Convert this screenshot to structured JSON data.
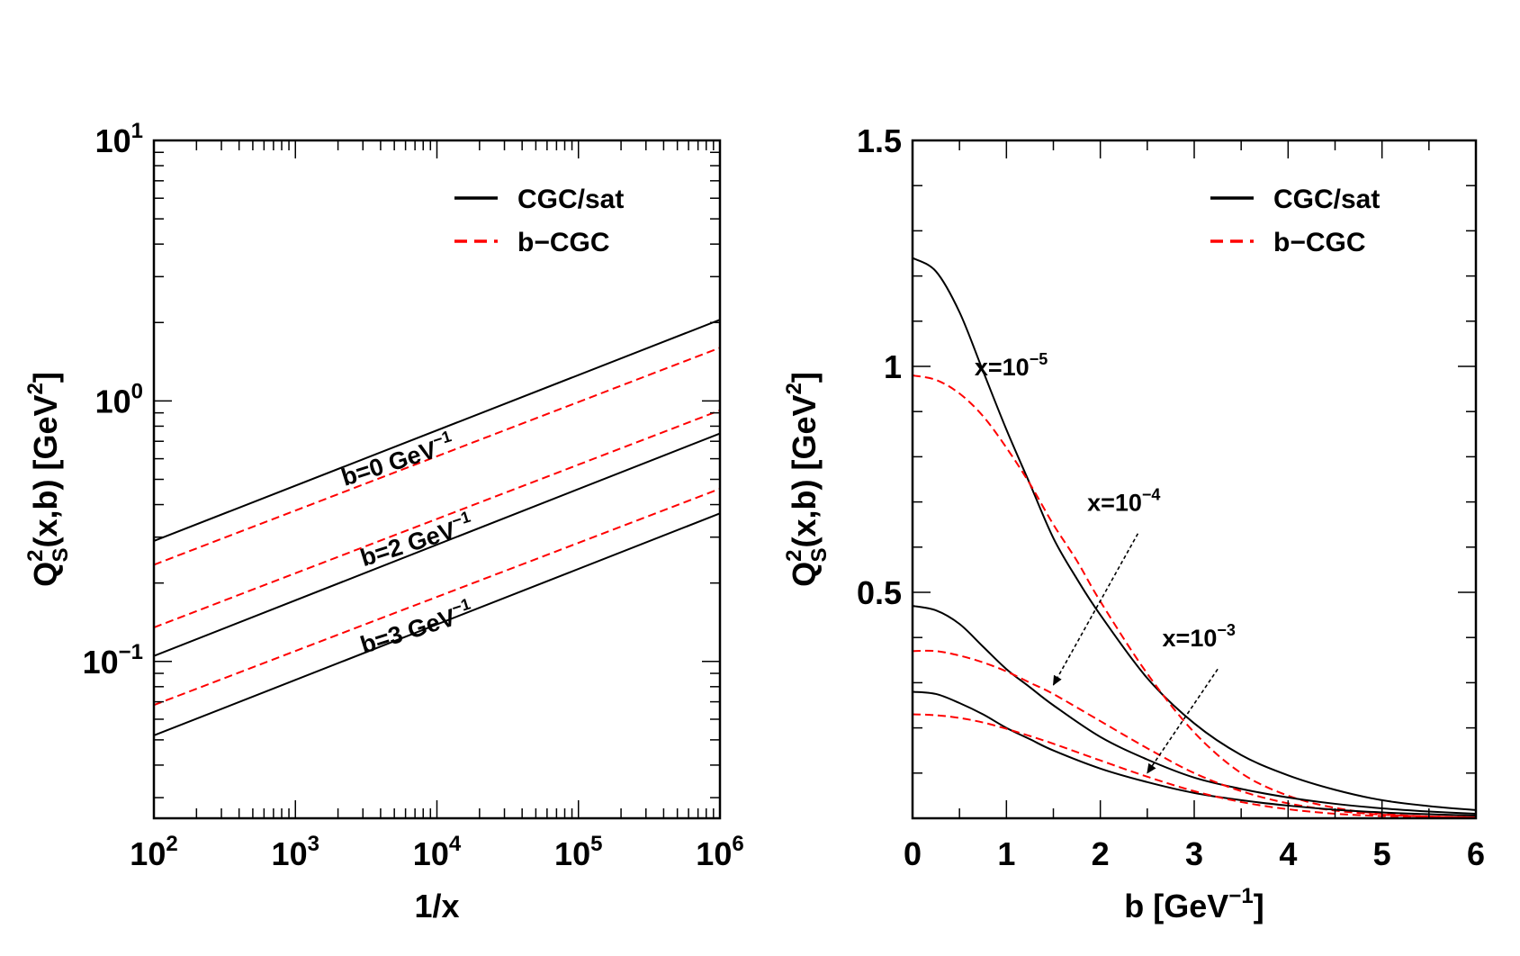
{
  "chart_data": [
    {
      "type": "line",
      "xscale": "log",
      "yscale": "log",
      "xlabel": "1/x",
      "ylabel": "Q_S^2(x,b) [GeV^2]",
      "ylabel_parts": {
        "q": "Q",
        "sup": "2",
        "sub": "S",
        "rest": "(x,b) [GeV",
        "unit_sup": "2",
        "close": "]"
      },
      "xlim": [
        100,
        1000000
      ],
      "ylim": [
        0.025,
        10
      ],
      "xticks": [
        {
          "base": "10",
          "exp": "2",
          "value": 100
        },
        {
          "base": "10",
          "exp": "3",
          "value": 1000
        },
        {
          "base": "10",
          "exp": "4",
          "value": 10000
        },
        {
          "base": "10",
          "exp": "5",
          "value": 100000
        },
        {
          "base": "10",
          "exp": "6",
          "value": 1000000
        }
      ],
      "yticks": [
        {
          "base": "10",
          "exp": "−1",
          "value": 0.1
        },
        {
          "base": "10",
          "exp": "0",
          "value": 1
        },
        {
          "base": "10",
          "exp": "1",
          "value": 10
        }
      ],
      "legend": {
        "position": "top-right",
        "entries": [
          {
            "label": "CGC/sat",
            "style": "solid",
            "color": "#000000"
          },
          {
            "label": "b−CGC",
            "style": "dashed",
            "color": "#ff0000"
          }
        ]
      },
      "series": [
        {
          "name": "CGC/sat, b=0",
          "style": "solid",
          "color": "#000000",
          "x": [
            100,
            1000000
          ],
          "y": [
            0.29,
            2.05
          ]
        },
        {
          "name": "b−CGC, b=0",
          "style": "dashed",
          "color": "#ff0000",
          "x": [
            100,
            1000000
          ],
          "y": [
            0.235,
            1.6
          ]
        },
        {
          "name": "b−CGC, b=2",
          "style": "dashed",
          "color": "#ff0000",
          "x": [
            100,
            1000000
          ],
          "y": [
            0.135,
            0.92
          ]
        },
        {
          "name": "CGC/sat, b=2",
          "style": "solid",
          "color": "#000000",
          "x": [
            100,
            1000000
          ],
          "y": [
            0.105,
            0.75
          ]
        },
        {
          "name": "b−CGC, b=3",
          "style": "dashed",
          "color": "#ff0000",
          "x": [
            100,
            1000000
          ],
          "y": [
            0.068,
            0.46
          ]
        },
        {
          "name": "CGC/sat, b=3",
          "style": "solid",
          "color": "#000000",
          "x": [
            100,
            1000000
          ],
          "y": [
            0.052,
            0.37
          ]
        }
      ],
      "annotations": [
        {
          "text": "b=0 GeV",
          "sup": "−1",
          "x": 5500,
          "y": 0.55
        },
        {
          "text": "b=2 GeV",
          "sup": "−1",
          "x": 7500,
          "y": 0.27
        },
        {
          "text": "b=3 GeV",
          "sup": "−1",
          "x": 7500,
          "y": 0.125
        }
      ]
    },
    {
      "type": "line",
      "xscale": "linear",
      "yscale": "linear",
      "xlabel": "b [GeV^-1]",
      "xlabel_parts": {
        "text": "b [GeV",
        "sup": "−1",
        "close": "]"
      },
      "ylabel": "Q_S^2(x,b) [GeV^2]",
      "ylabel_parts": {
        "q": "Q",
        "sup": "2",
        "sub": "S",
        "rest": "(x,b) [GeV",
        "unit_sup": "2",
        "close": "]"
      },
      "xlim": [
        0,
        6
      ],
      "ylim": [
        0,
        1.5
      ],
      "xticks": [
        {
          "label": "0",
          "value": 0
        },
        {
          "label": "1",
          "value": 1
        },
        {
          "label": "2",
          "value": 2
        },
        {
          "label": "3",
          "value": 3
        },
        {
          "label": "4",
          "value": 4
        },
        {
          "label": "5",
          "value": 5
        },
        {
          "label": "6",
          "value": 6
        }
      ],
      "yticks": [
        {
          "label": "0.5",
          "value": 0.5
        },
        {
          "label": "1",
          "value": 1
        },
        {
          "label": "1.5",
          "value": 1.5
        }
      ],
      "legend": {
        "position": "top-right",
        "entries": [
          {
            "label": "CGC/sat",
            "style": "solid",
            "color": "#000000"
          },
          {
            "label": "b−CGC",
            "style": "dashed",
            "color": "#ff0000"
          }
        ]
      },
      "series": [
        {
          "name": "CGC/sat, x=1e-5",
          "style": "solid",
          "color": "#000000",
          "x": [
            0,
            0.25,
            0.5,
            0.75,
            1.0,
            1.25,
            1.5,
            1.75,
            2.0,
            2.5,
            3.0,
            3.5,
            4.0,
            4.5,
            5.0,
            5.5,
            6.0
          ],
          "y": [
            1.24,
            1.21,
            1.12,
            0.99,
            0.86,
            0.74,
            0.62,
            0.53,
            0.45,
            0.31,
            0.21,
            0.14,
            0.095,
            0.063,
            0.04,
            0.027,
            0.018
          ]
        },
        {
          "name": "b−CGC, x=1e-5",
          "style": "dashed",
          "color": "#ff0000",
          "x": [
            0,
            0.25,
            0.5,
            0.75,
            1.0,
            1.25,
            1.5,
            1.75,
            2.0,
            2.5,
            3.0,
            3.5,
            4.0,
            4.5,
            5.0,
            5.5,
            6.0
          ],
          "y": [
            0.98,
            0.97,
            0.94,
            0.89,
            0.82,
            0.74,
            0.65,
            0.57,
            0.48,
            0.32,
            0.19,
            0.1,
            0.05,
            0.023,
            0.01,
            0.004,
            0.002
          ]
        },
        {
          "name": "CGC/sat, x=1e-4",
          "style": "solid",
          "color": "#000000",
          "x": [
            0,
            0.25,
            0.5,
            0.75,
            1.0,
            1.25,
            1.5,
            2.0,
            2.5,
            3.0,
            3.5,
            4.0,
            4.5,
            5.0,
            5.5,
            6.0
          ],
          "y": [
            0.47,
            0.46,
            0.43,
            0.38,
            0.33,
            0.29,
            0.25,
            0.18,
            0.13,
            0.09,
            0.065,
            0.046,
            0.032,
            0.022,
            0.015,
            0.01
          ]
        },
        {
          "name": "b−CGC, x=1e-4",
          "style": "dashed",
          "color": "#ff0000",
          "x": [
            0,
            0.25,
            0.5,
            0.75,
            1.0,
            1.25,
            1.5,
            2.0,
            2.5,
            3.0,
            3.5,
            4.0,
            4.5,
            5.0,
            5.5,
            6.0
          ],
          "y": [
            0.37,
            0.37,
            0.36,
            0.345,
            0.325,
            0.3,
            0.275,
            0.215,
            0.155,
            0.1,
            0.06,
            0.033,
            0.017,
            0.008,
            0.004,
            0.002
          ]
        },
        {
          "name": "CGC/sat, x=1e-3",
          "style": "solid",
          "color": "#000000",
          "x": [
            0,
            0.25,
            0.5,
            0.75,
            1.0,
            1.25,
            1.5,
            2.0,
            2.5,
            3.0,
            3.5,
            4.0,
            4.5,
            5.0,
            5.5,
            6.0
          ],
          "y": [
            0.28,
            0.275,
            0.255,
            0.23,
            0.2,
            0.175,
            0.15,
            0.11,
            0.08,
            0.056,
            0.04,
            0.028,
            0.019,
            0.013,
            0.009,
            0.006
          ]
        },
        {
          "name": "b−CGC, x=1e-3",
          "style": "dashed",
          "color": "#ff0000",
          "x": [
            0,
            0.25,
            0.5,
            0.75,
            1.0,
            1.25,
            1.5,
            2.0,
            2.5,
            3.0,
            3.5,
            4.0,
            4.5,
            5.0,
            5.5,
            6.0
          ],
          "y": [
            0.23,
            0.228,
            0.222,
            0.212,
            0.198,
            0.182,
            0.165,
            0.128,
            0.092,
            0.06,
            0.036,
            0.02,
            0.01,
            0.005,
            0.0025,
            0.001
          ]
        }
      ],
      "annotations": [
        {
          "text": "x=10",
          "sup": "−5",
          "x": 1.05,
          "y": 0.98
        },
        {
          "text": "x=10",
          "sup": "−4",
          "x": 2.25,
          "y": 0.68
        },
        {
          "text": "x=10",
          "sup": "−3",
          "x": 3.05,
          "y": 0.38
        }
      ],
      "arrows": [
        {
          "from": [
            2.4,
            0.63
          ],
          "to": [
            1.5,
            0.295
          ]
        },
        {
          "from": [
            3.25,
            0.33
          ],
          "to": [
            2.5,
            0.1
          ]
        }
      ]
    }
  ]
}
